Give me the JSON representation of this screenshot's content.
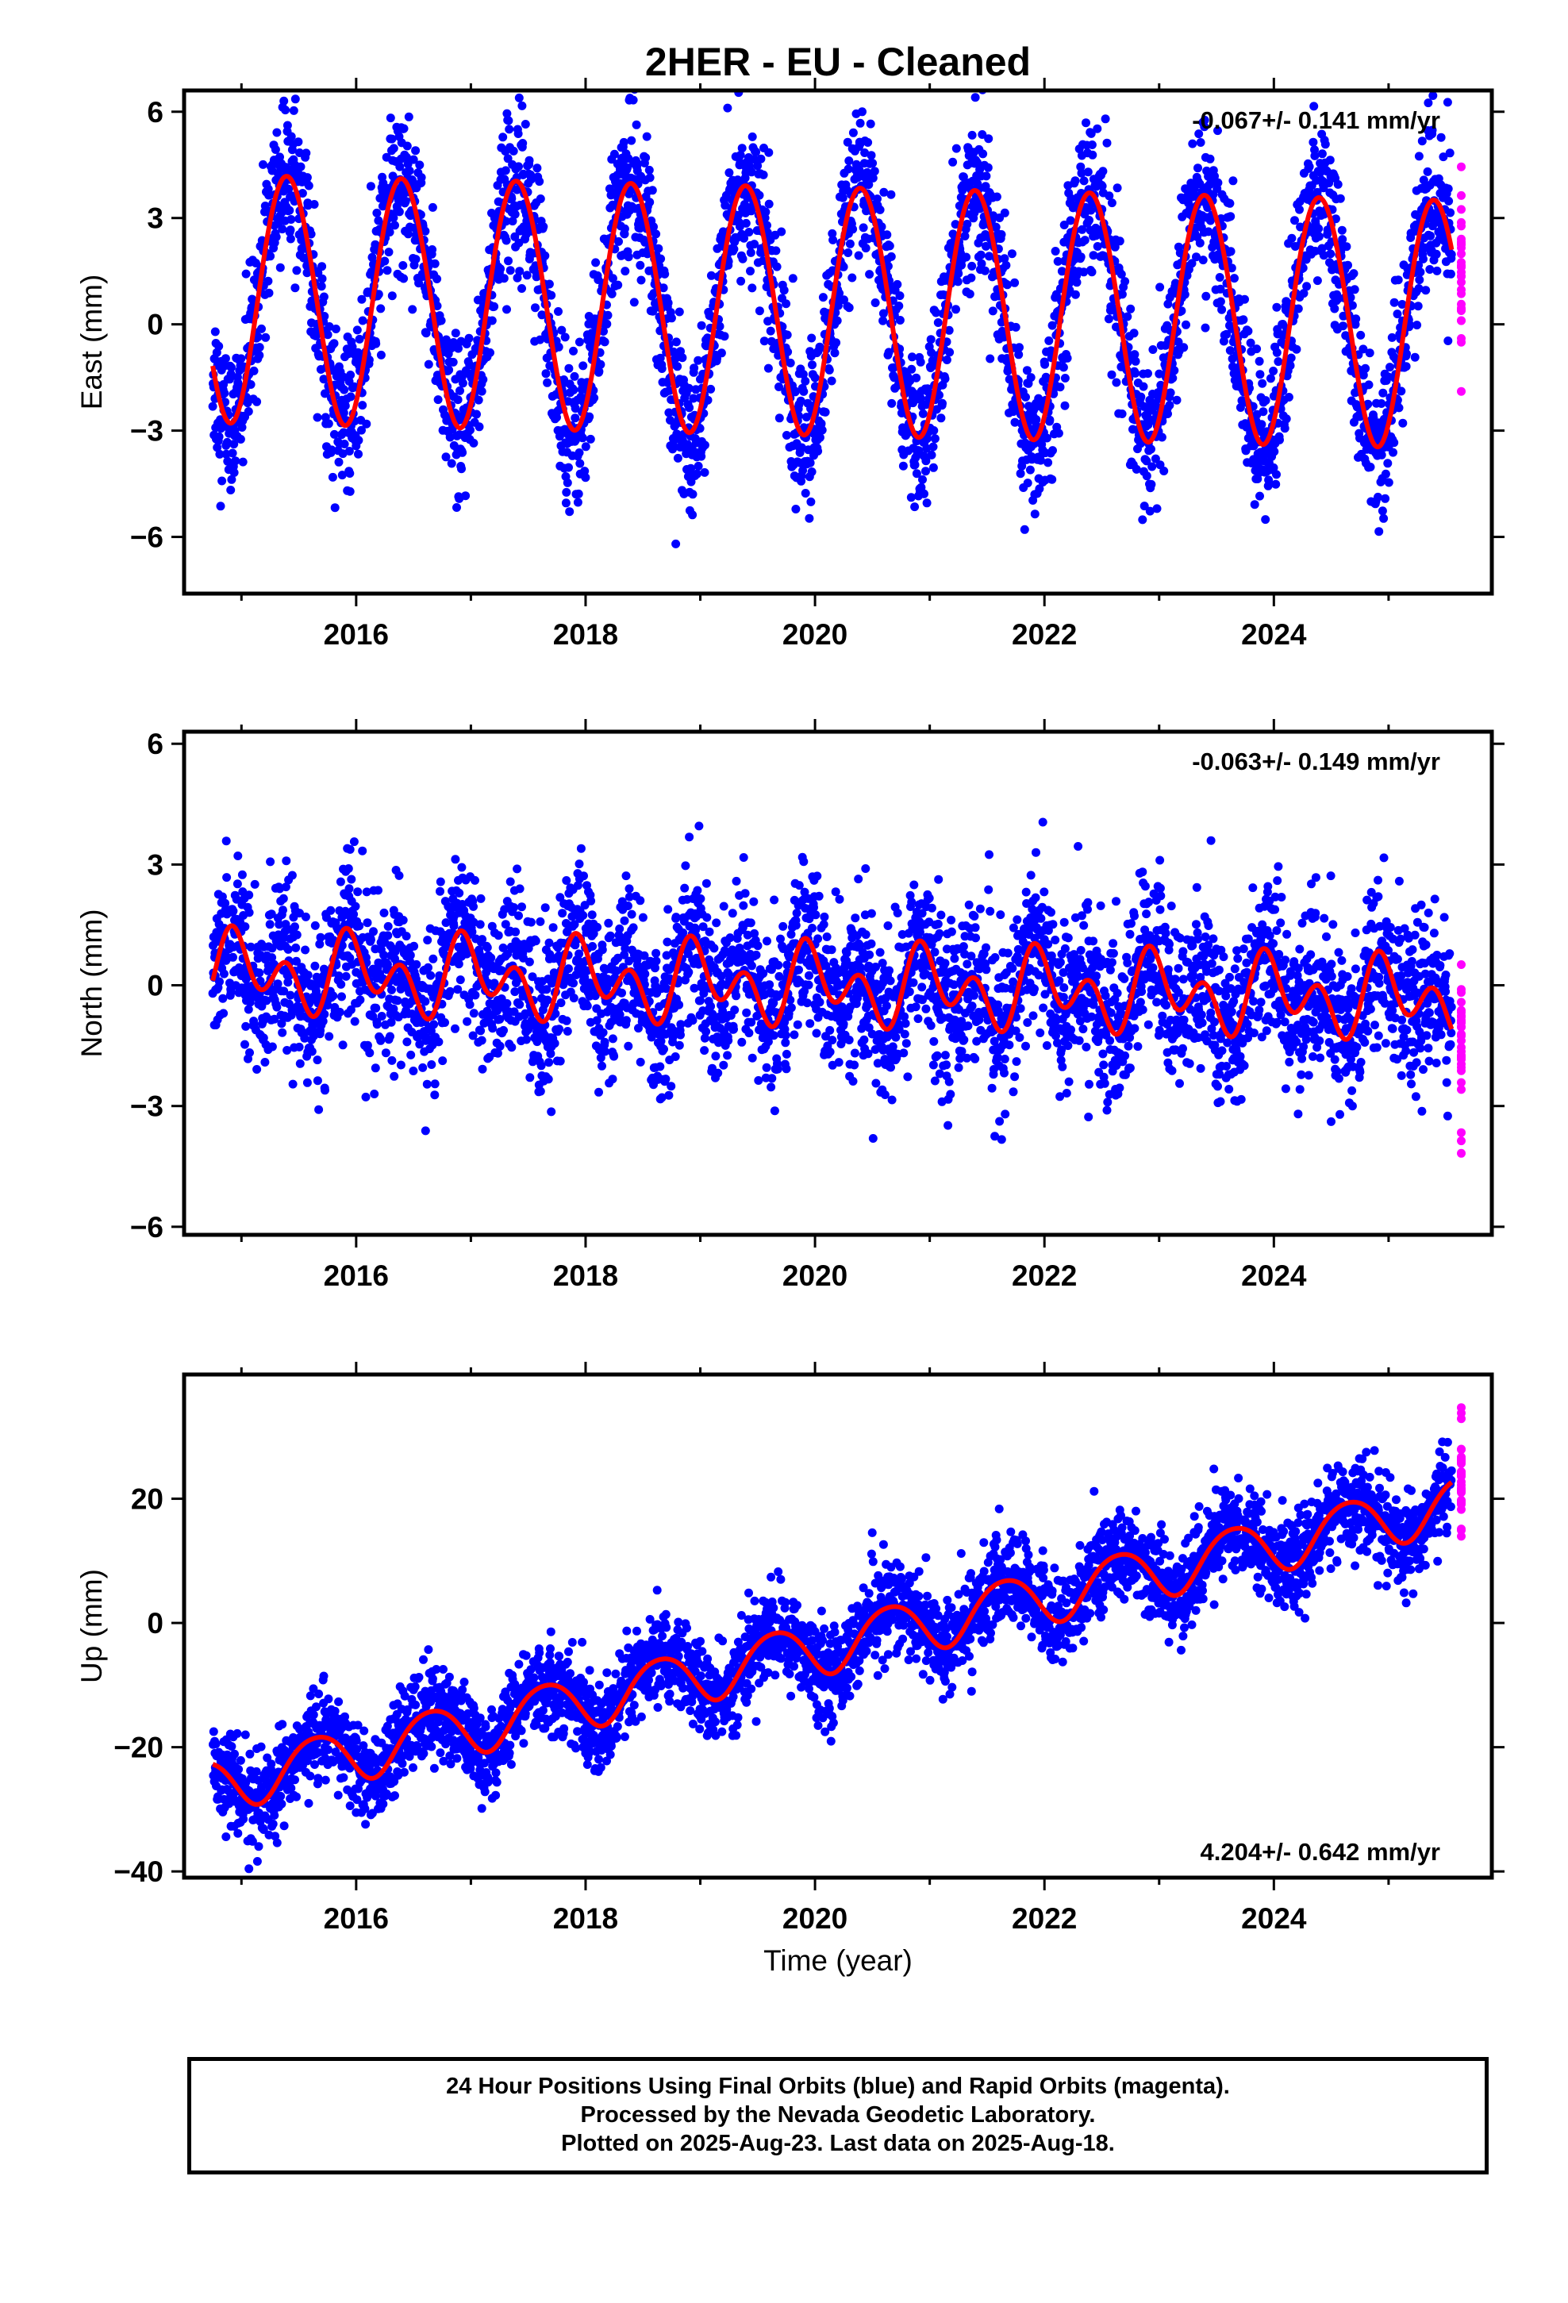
{
  "title": "2HER  - EU - Cleaned",
  "xlabel": "Time (year)",
  "footer": {
    "line1": "24 Hour Positions Using Final Orbits (blue) and Rapid Orbits (magenta).",
    "line2": "Processed by the Nevada Geodetic Laboratory.",
    "line3": "Plotted on 2025-Aug-23. Last data on 2025-Aug-18."
  },
  "colors": {
    "final_orbits": "#0000ff",
    "rapid_orbits": "#ff00ff",
    "model": "#ff0000"
  },
  "chart_data": [
    {
      "type": "scatter",
      "ylabel": "East (mm)",
      "annotation": "-0.067+/- 0.141 mm/yr",
      "annotation_position": "top-right",
      "xlim": [
        2014.5,
        2025.9
      ],
      "ylim": [
        -7.6,
        6.6
      ],
      "x_ticks": [
        2016,
        2018,
        2020,
        2022,
        2024
      ],
      "y_ticks": [
        -6,
        -3,
        0,
        3,
        6
      ],
      "y_tick_labels": [
        "−6",
        "−3",
        "0",
        "3",
        "6"
      ],
      "data_span": [
        2014.75,
        2025.55
      ],
      "rapid_span": [
        2025.55,
        2025.63
      ],
      "model": {
        "offset": 0.45,
        "rate": -0.067,
        "t0": 2020.0,
        "annual_amp": 3.5,
        "annual_phase": 2015.4,
        "semiannual_amp": 0.1,
        "semiannual_phase": 2015.2
      },
      "noise_sd": 1.1,
      "series": [
        {
          "name": "Final Orbits (blue)",
          "color": "#0000ff"
        },
        {
          "name": "Rapid Orbits (magenta)",
          "color": "#ff00ff"
        },
        {
          "name": "Model fit",
          "color": "#ff0000"
        }
      ]
    },
    {
      "type": "scatter",
      "ylabel": "North (mm)",
      "annotation": "-0.063+/- 0.149 mm/yr",
      "annotation_position": "top-right",
      "xlim": [
        2014.5,
        2025.9
      ],
      "ylim": [
        -6.2,
        6.3
      ],
      "x_ticks": [
        2016,
        2018,
        2020,
        2022,
        2024
      ],
      "y_ticks": [
        -6,
        -3,
        0,
        3,
        6
      ],
      "y_tick_labels": [
        "−6",
        "−3",
        "0",
        "3",
        "6"
      ],
      "data_span": [
        2014.75,
        2025.55
      ],
      "rapid_span": [
        2025.55,
        2025.63
      ],
      "model": {
        "offset": 0.0,
        "rate": -0.063,
        "t0": 2020.0,
        "annual_amp": 0.55,
        "annual_phase": 2015.0,
        "semiannual_amp": 0.7,
        "semiannual_phase": 2014.9
      },
      "noise_sd": 1.0,
      "series": [
        {
          "name": "Final Orbits (blue)",
          "color": "#0000ff"
        },
        {
          "name": "Rapid Orbits (magenta)",
          "color": "#ff00ff"
        },
        {
          "name": "Model fit",
          "color": "#ff0000"
        }
      ]
    },
    {
      "type": "scatter",
      "ylabel": "Up (mm)",
      "annotation": "4.204+/- 0.642 mm/yr",
      "annotation_position": "bottom-right",
      "xlim": [
        2014.5,
        2025.9
      ],
      "ylim": [
        -41,
        40
      ],
      "x_ticks": [
        2016,
        2018,
        2020,
        2022,
        2024
      ],
      "y_ticks": [
        -40,
        -20,
        0,
        20
      ],
      "y_tick_labels": [
        "−40",
        "−20",
        "0",
        "20"
      ],
      "data_span": [
        2014.75,
        2025.55
      ],
      "rapid_span": [
        2025.55,
        2025.63
      ],
      "model": {
        "offset": -4.0,
        "rate": 4.204,
        "t0": 2020.0,
        "annual_amp": 4.3,
        "annual_phase": 2015.65,
        "semiannual_amp": 0.5,
        "semiannual_phase": 2015.4
      },
      "noise_sd": 3.6,
      "series": [
        {
          "name": "Final Orbits (blue)",
          "color": "#0000ff"
        },
        {
          "name": "Rapid Orbits (magenta)",
          "color": "#ff00ff"
        },
        {
          "name": "Model fit",
          "color": "#ff0000"
        }
      ]
    }
  ]
}
